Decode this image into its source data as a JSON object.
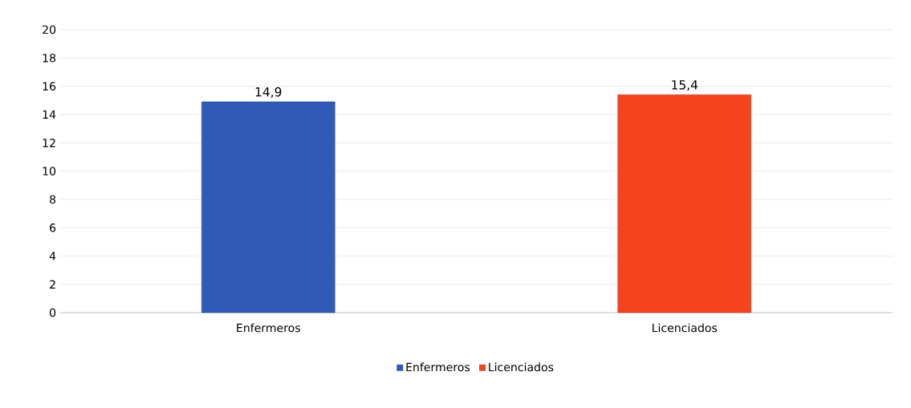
{
  "chart_data": {
    "type": "bar",
    "categories": [
      "Enfermeros",
      "Licenciados"
    ],
    "series": [
      {
        "name": "Enfermeros",
        "color": "#2f5bb7",
        "values": [
          14.9,
          null
        ],
        "value_labels": [
          "14,9",
          null
        ]
      },
      {
        "name": "Licenciados",
        "color": "#f4431f",
        "values": [
          null,
          15.4
        ],
        "value_labels": [
          null,
          "15,4"
        ]
      }
    ],
    "ylim": [
      0,
      20
    ],
    "yticks": [
      0,
      2,
      4,
      6,
      8,
      10,
      12,
      14,
      16,
      18,
      20
    ],
    "grid": "y",
    "legend": "bottom"
  }
}
